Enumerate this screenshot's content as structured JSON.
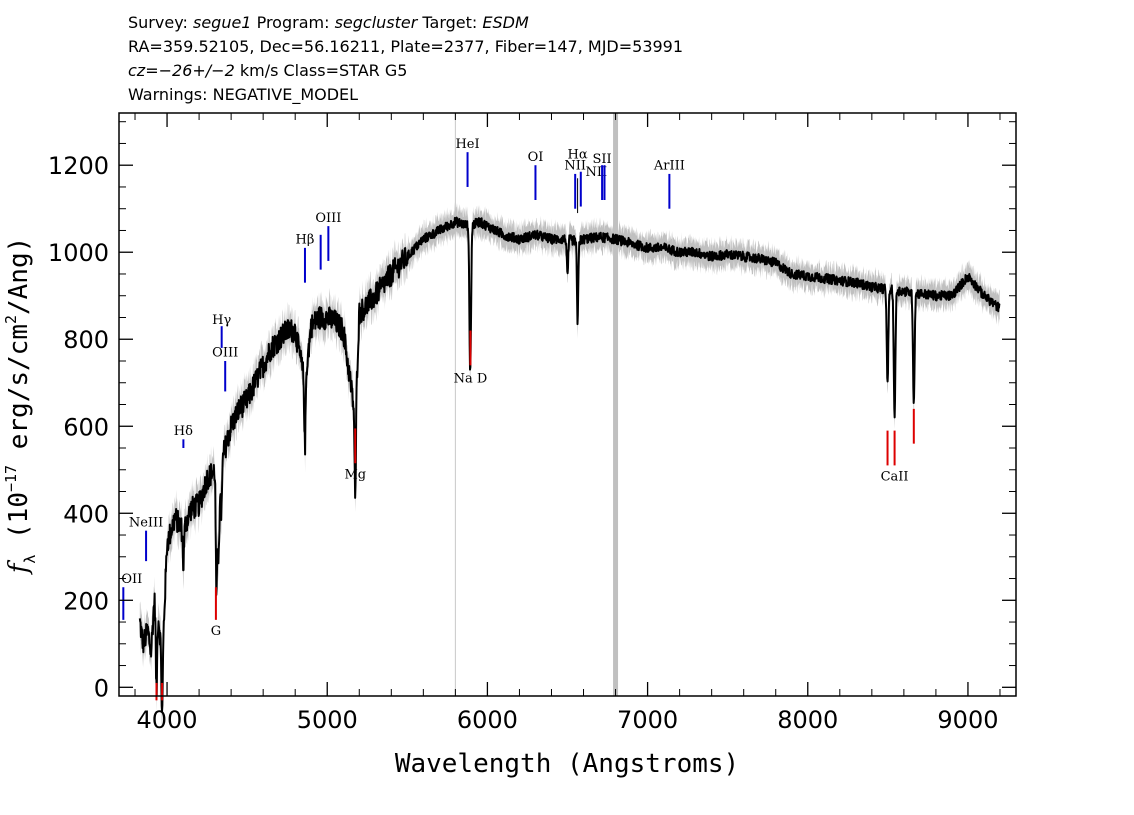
{
  "header": {
    "line1": {
      "survey_label": "Survey:",
      "survey": "segue1",
      "program_label": "Program:",
      "program": "segcluster",
      "target_label": "Target:",
      "target": "ESDM"
    },
    "line2": "RA=359.52105, Dec=56.16211, Plate=2377, Fiber=147, MJD=53991",
    "line3": {
      "cz": "cz=−26+/−2",
      "rest": " km/s Class=STAR G5"
    },
    "line4": "Warnings: NEGATIVE_MODEL"
  },
  "colors": {
    "spectrum": "#000000",
    "error_band": "#c0c0c0",
    "emission": "#0000cc",
    "absorption": "#dd0000",
    "marker_line": "#c8c8c8"
  },
  "chart_data": {
    "type": "line",
    "xlabel": "Wavelength (Angstroms)",
    "ylabel_parts": [
      "f",
      "λ",
      " (10",
      "−17",
      " erg/s/cm",
      "2",
      "/Ang)"
    ],
    "xlim": [
      3700,
      9300
    ],
    "ylim": [
      -20,
      1320
    ],
    "x_ticks": [
      4000,
      5000,
      6000,
      7000,
      8000,
      9000
    ],
    "y_ticks": [
      0,
      200,
      400,
      600,
      800,
      1000,
      1200
    ],
    "x_tick_labels": [
      "4000",
      "5000",
      "6000",
      "7000",
      "8000",
      "9000"
    ],
    "y_tick_labels": [
      "0",
      "200",
      "400",
      "600",
      "800",
      "1000",
      "1200"
    ],
    "grid": false,
    "spectrum_anchors": [
      [
        3830,
        150
      ],
      [
        3850,
        100
      ],
      [
        3880,
        130
      ],
      [
        3900,
        80
      ],
      [
        3920,
        200
      ],
      [
        3950,
        150
      ],
      [
        3970,
        60
      ],
      [
        4000,
        330
      ],
      [
        4050,
        390
      ],
      [
        4100,
        360
      ],
      [
        4150,
        410
      ],
      [
        4200,
        420
      ],
      [
        4250,
        480
      ],
      [
        4300,
        500
      ],
      [
        4320,
        300
      ],
      [
        4340,
        520
      ],
      [
        4400,
        600
      ],
      [
        4450,
        640
      ],
      [
        4500,
        660
      ],
      [
        4550,
        700
      ],
      [
        4600,
        740
      ],
      [
        4650,
        780
      ],
      [
        4700,
        800
      ],
      [
        4750,
        820
      ],
      [
        4800,
        820
      ],
      [
        4860,
        700
      ],
      [
        4900,
        830
      ],
      [
        4950,
        850
      ],
      [
        5000,
        850
      ],
      [
        5050,
        840
      ],
      [
        5100,
        820
      ],
      [
        5175,
        620
      ],
      [
        5200,
        860
      ],
      [
        5300,
        900
      ],
      [
        5400,
        950
      ],
      [
        5500,
        990
      ],
      [
        5600,
        1030
      ],
      [
        5700,
        1050
      ],
      [
        5800,
        1070
      ],
      [
        5890,
        1060
      ],
      [
        5950,
        1070
      ],
      [
        6000,
        1060
      ],
      [
        6100,
        1040
      ],
      [
        6200,
        1030
      ],
      [
        6300,
        1040
      ],
      [
        6400,
        1030
      ],
      [
        6500,
        1030
      ],
      [
        6563,
        1025
      ],
      [
        6600,
        1030
      ],
      [
        6700,
        1035
      ],
      [
        6800,
        1030
      ],
      [
        6900,
        1020
      ],
      [
        7000,
        1010
      ],
      [
        7100,
        1010
      ],
      [
        7200,
        1000
      ],
      [
        7300,
        1000
      ],
      [
        7400,
        990
      ],
      [
        7500,
        995
      ],
      [
        7600,
        990
      ],
      [
        7700,
        985
      ],
      [
        7800,
        975
      ],
      [
        7900,
        950
      ],
      [
        8000,
        945
      ],
      [
        8100,
        940
      ],
      [
        8200,
        935
      ],
      [
        8300,
        930
      ],
      [
        8400,
        920
      ],
      [
        8500,
        915
      ],
      [
        8600,
        910
      ],
      [
        8700,
        905
      ],
      [
        8800,
        900
      ],
      [
        8900,
        900
      ],
      [
        9000,
        945
      ],
      [
        9100,
        900
      ],
      [
        9200,
        870
      ]
    ],
    "absorption_dips": [
      [
        3934,
        190
      ],
      [
        3969,
        130
      ],
      [
        4102,
        80
      ],
      [
        4308,
        210
      ],
      [
        4340,
        110
      ],
      [
        4861,
        150
      ],
      [
        5175,
        200
      ],
      [
        5890,
        230
      ],
      [
        5896,
        200
      ],
      [
        6563,
        190
      ],
      [
        6500,
        90
      ],
      [
        8498,
        210
      ],
      [
        8542,
        290
      ],
      [
        8662,
        250
      ]
    ],
    "marker_lines": [
      {
        "x": 5800,
        "width": 1,
        "color": "#c8c8c8"
      },
      {
        "x": 6800,
        "width": 5,
        "color": "#c0c0c0"
      }
    ],
    "emission_lines": [
      {
        "label": "OII",
        "x": 3727,
        "y0": 155,
        "y1": 230,
        "label_y": 240,
        "anchor": "start"
      },
      {
        "label": "NeIII",
        "x": 3869,
        "y0": 290,
        "y1": 360,
        "label_y": 370
      },
      {
        "label": "Hδ",
        "x": 4102,
        "y0": 550,
        "y1": 570,
        "label_y": 580
      },
      {
        "label": "Hγ",
        "x": 4341,
        "y0": 780,
        "y1": 830,
        "label_y": 835
      },
      {
        "label": "OIII",
        "x": 4363,
        "y0": 680,
        "y1": 750,
        "label_y": 760
      },
      {
        "label": "Hβ",
        "x": 4861,
        "y0": 930,
        "y1": 1010,
        "label_y": 1020
      },
      {
        "label": "",
        "x": 4959,
        "y0": 960,
        "y1": 1040,
        "label_y": 0
      },
      {
        "label": "OIII",
        "x": 5007,
        "y0": 980,
        "y1": 1060,
        "label_y": 1070
      },
      {
        "label": "HeI",
        "x": 5876,
        "y0": 1150,
        "y1": 1230,
        "label_y": 1240
      },
      {
        "label": "OI",
        "x": 6300,
        "y0": 1120,
        "y1": 1200,
        "label_y": 1210
      },
      {
        "label": "NII",
        "x": 6548,
        "y0": 1100,
        "y1": 1180,
        "label_y": 1190
      },
      {
        "label": "Hα",
        "x": 6563,
        "y0": 1090,
        "y1": 1170,
        "label_y": 1215,
        "thin": true
      },
      {
        "label": "",
        "x": 6583,
        "y0": 1105,
        "y1": 1185,
        "label_y": 0
      },
      {
        "label": "NII",
        "x": 6583,
        "y0": 0,
        "y1": 0,
        "label_y": 1175,
        "label_x": 6680,
        "label_only": true
      },
      {
        "label": "SII",
        "x": 6716,
        "y0": 1120,
        "y1": 1200,
        "label_y": 1205
      },
      {
        "label": "",
        "x": 6731,
        "y0": 1120,
        "y1": 1200,
        "label_y": 0
      },
      {
        "label": "ArIII",
        "x": 7136,
        "y0": 1100,
        "y1": 1180,
        "label_y": 1190
      }
    ],
    "absorption_lines": [
      {
        "label": "",
        "x": 3934,
        "y0": -30,
        "y1": 10,
        "label_y": 0
      },
      {
        "label": "",
        "x": 3969,
        "y0": -30,
        "y1": 10,
        "label_y": 0
      },
      {
        "label": "G",
        "x": 4305,
        "y0": 155,
        "y1": 230,
        "label_y": 120
      },
      {
        "label": "Mg",
        "x": 5175,
        "y0": 515,
        "y1": 595,
        "label_y": 480
      },
      {
        "label": "Na D",
        "x": 5894,
        "y0": 740,
        "y1": 820,
        "label_y": 700,
        "wide_label": true
      },
      {
        "label": "",
        "x": 8498,
        "y0": 510,
        "y1": 590,
        "label_y": 0
      },
      {
        "label": "CaII",
        "x": 8542,
        "y0": 510,
        "y1": 590,
        "label_y": 475
      },
      {
        "label": "",
        "x": 8662,
        "y0": 560,
        "y1": 640,
        "label_y": 0
      }
    ]
  }
}
